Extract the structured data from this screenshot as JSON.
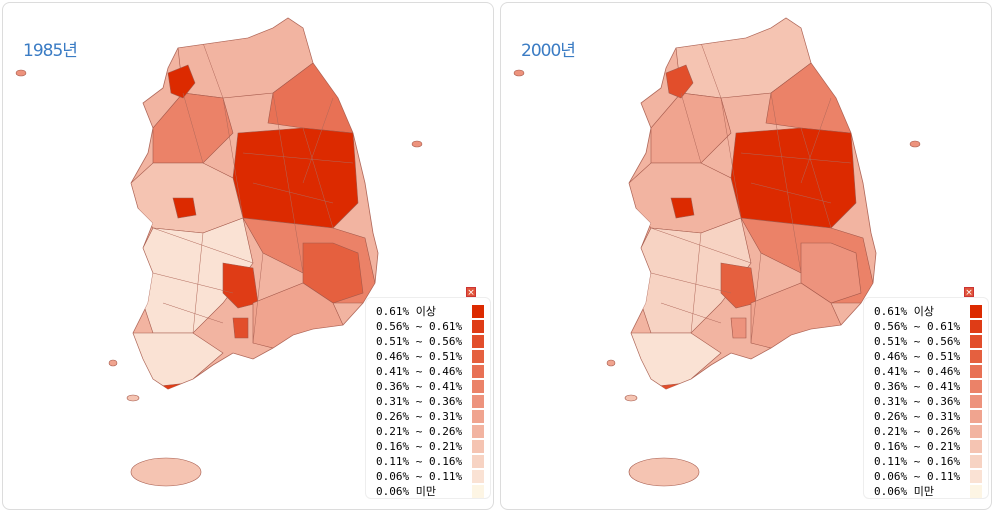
{
  "panels": [
    {
      "year": "1985년"
    },
    {
      "year": "2000년"
    }
  ],
  "legend": {
    "close_icon": "close-icon",
    "items": [
      {
        "label": "0.61% 이상",
        "color": "#dc2a00"
      },
      {
        "label": "0.56% ~ 0.61%",
        "color": "#df3c16"
      },
      {
        "label": "0.51% ~ 0.56%",
        "color": "#e24e2b"
      },
      {
        "label": "0.46% ~ 0.51%",
        "color": "#e5603f"
      },
      {
        "label": "0.41% ~ 0.46%",
        "color": "#e87155"
      },
      {
        "label": "0.36% ~ 0.41%",
        "color": "#eb8268"
      },
      {
        "label": "0.31% ~ 0.36%",
        "color": "#ed937d"
      },
      {
        "label": "0.26% ~ 0.31%",
        "color": "#f0a48f"
      },
      {
        "label": "0.21% ~ 0.26%",
        "color": "#f2b4a1"
      },
      {
        "label": "0.16% ~ 0.21%",
        "color": "#f5c4b2"
      },
      {
        "label": "0.11% ~ 0.16%",
        "color": "#f7d3c3"
      },
      {
        "label": "0.06% ~ 0.11%",
        "color": "#fae2d4"
      },
      {
        "label": "0.06% 미만",
        "color": "#fdf5e4"
      }
    ]
  }
}
